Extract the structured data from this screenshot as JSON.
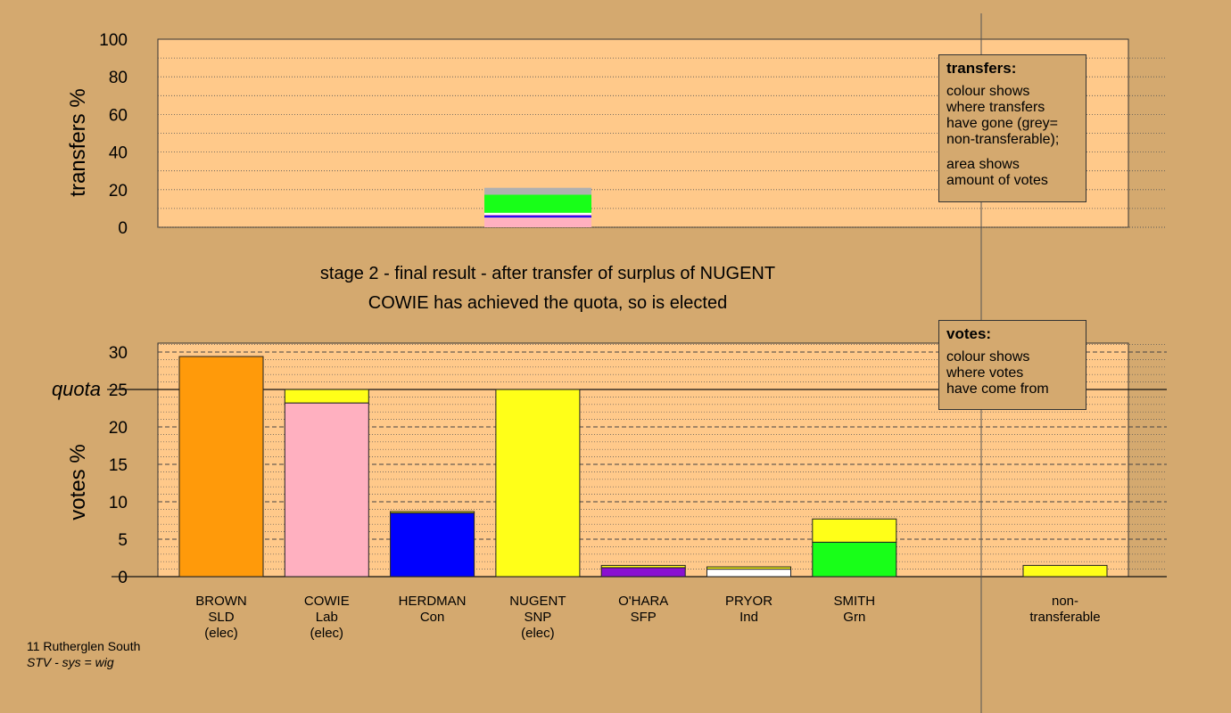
{
  "title_lines": [
    "stage 2 - final result - after transfer of surplus of NUGENT",
    "COWIE has achieved the quota, so is elected"
  ],
  "footer": {
    "ward": "11 Rutherglen South",
    "system": "STV - sys = wig"
  },
  "legend_transfers": {
    "title": "transfers:",
    "lines1": [
      "colour shows",
      "where transfers",
      "have gone (grey=",
      "non-transferable);"
    ],
    "lines2": [
      "area shows",
      "amount of votes"
    ]
  },
  "legend_votes": {
    "title": "votes:",
    "lines": [
      "colour shows",
      "where votes",
      "have come from"
    ]
  },
  "colors": {
    "background": "#d4a96f",
    "plot_bg": "#ffc98a",
    "SLD": "#ff9a0a",
    "Lab": "#ffb0c0",
    "Con": "#0000ff",
    "SNP": "#ffff18",
    "SFP": "#8a10d0",
    "Ind": "#ffffff",
    "Grn": "#18ff18",
    "nontransferable": "#b0b0b0"
  },
  "chart_data": [
    {
      "type": "bar",
      "stacked": true,
      "ylabel": "transfers %",
      "ylim": [
        0,
        100
      ],
      "yticks": [
        0,
        20,
        40,
        60,
        80,
        100
      ],
      "grid": true,
      "position": "above NUGENT",
      "segments": [
        {
          "name": "COWIE",
          "color": "#ffb0c0",
          "value": 5.2
        },
        {
          "name": "HERDMAN",
          "color": "#0000ff",
          "value": 0.8
        },
        {
          "name": "O'HARA",
          "color": "#8a10d0",
          "value": 0.5
        },
        {
          "name": "PRYOR",
          "color": "#ffffff",
          "value": 1.2
        },
        {
          "name": "SMITH",
          "color": "#18ff18",
          "value": 9.6
        },
        {
          "name": "non-transferable",
          "color": "#b0b0b0",
          "value": 3.7
        }
      ]
    },
    {
      "type": "bar",
      "stacked": true,
      "ylabel": "votes %",
      "ylim": [
        0,
        30
      ],
      "yticks": [
        0,
        5,
        10,
        15,
        20,
        25,
        30
      ],
      "quota": 25,
      "quota_label": "quota",
      "grid": true,
      "categories": [
        {
          "name": "BROWN",
          "party": "SLD",
          "note": "(elec)",
          "segments": [
            {
              "color": "#ff9a0a",
              "value": 29.4
            }
          ]
        },
        {
          "name": "COWIE",
          "party": "Lab",
          "note": "(elec)",
          "segments": [
            {
              "color": "#ffb0c0",
              "value": 23.2
            },
            {
              "color": "#ffff18",
              "value": 1.8
            }
          ]
        },
        {
          "name": "HERDMAN",
          "party": "Con",
          "note": "",
          "segments": [
            {
              "color": "#0000ff",
              "value": 8.5
            },
            {
              "color": "#ffff18",
              "value": 0.2
            }
          ]
        },
        {
          "name": "NUGENT",
          "party": "SNP",
          "note": "(elec)",
          "segments": [
            {
              "color": "#ffff18",
              "value": 25.0
            }
          ]
        },
        {
          "name": "O'HARA",
          "party": "SFP",
          "note": "",
          "segments": [
            {
              "color": "#8a10d0",
              "value": 1.2
            },
            {
              "color": "#ffff18",
              "value": 0.3
            }
          ]
        },
        {
          "name": "PRYOR",
          "party": "Ind",
          "note": "",
          "segments": [
            {
              "color": "#ffffff",
              "value": 1.0
            },
            {
              "color": "#ffff18",
              "value": 0.3
            }
          ]
        },
        {
          "name": "SMITH",
          "party": "Grn",
          "note": "",
          "segments": [
            {
              "color": "#18ff18",
              "value": 4.6
            },
            {
              "color": "#ffff18",
              "value": 3.1
            }
          ]
        }
      ],
      "nontransferable": {
        "label1": "non-",
        "label2": "transferable",
        "segments": [
          {
            "color": "#ffff18",
            "value": 1.5
          }
        ]
      }
    }
  ]
}
